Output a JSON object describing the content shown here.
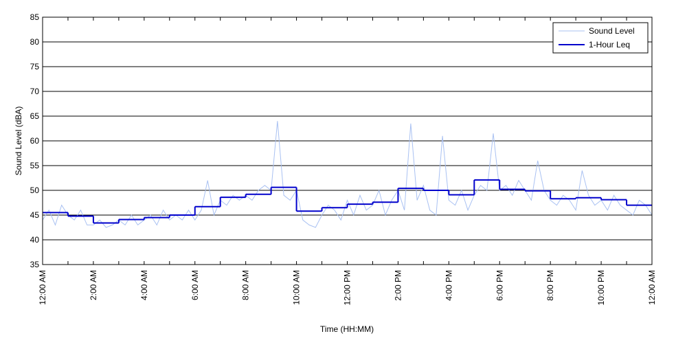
{
  "chart_data": {
    "type": "line",
    "ylabel": "Sound Level (dBA)",
    "xlabel": "Time (HH:MM)",
    "ylim": [
      35,
      85
    ],
    "yticks": [
      35,
      40,
      45,
      50,
      55,
      60,
      65,
      70,
      75,
      80,
      85
    ],
    "xlim": [
      0,
      24
    ],
    "xticks": [
      {
        "value": 0,
        "label": "12:00 AM"
      },
      {
        "value": 2,
        "label": "2:00 AM"
      },
      {
        "value": 4,
        "label": "4:00 AM"
      },
      {
        "value": 6,
        "label": "6:00 AM"
      },
      {
        "value": 8,
        "label": "8:00 AM"
      },
      {
        "value": 10,
        "label": "10:00 AM"
      },
      {
        "value": 12,
        "label": "12:00 PM"
      },
      {
        "value": 14,
        "label": "2:00 PM"
      },
      {
        "value": 16,
        "label": "4:00 PM"
      },
      {
        "value": 18,
        "label": "6:00 PM"
      },
      {
        "value": 20,
        "label": "8:00 PM"
      },
      {
        "value": 22,
        "label": "10:00 PM"
      },
      {
        "value": 24,
        "label": "12:00 AM"
      }
    ],
    "xminorticks": [
      1,
      3,
      5,
      7,
      9,
      11,
      13,
      15,
      17,
      19,
      21,
      23
    ],
    "grid": true,
    "legend": "top-right",
    "series": [
      {
        "name": "Sound Level",
        "color": "#a9c1f2",
        "style": "line",
        "x": [
          0,
          0.25,
          0.5,
          0.75,
          1,
          1.25,
          1.5,
          1.75,
          2,
          2.25,
          2.5,
          2.75,
          3,
          3.25,
          3.5,
          3.75,
          4,
          4.25,
          4.5,
          4.75,
          5,
          5.25,
          5.5,
          5.75,
          6,
          6.25,
          6.5,
          6.75,
          7,
          7.25,
          7.5,
          7.75,
          8,
          8.25,
          8.5,
          8.75,
          9,
          9.25,
          9.5,
          9.75,
          10,
          10.25,
          10.5,
          10.75,
          11,
          11.25,
          11.5,
          11.75,
          12,
          12.25,
          12.5,
          12.75,
          13,
          13.25,
          13.5,
          13.75,
          14,
          14.25,
          14.5,
          14.75,
          15,
          15.25,
          15.5,
          15.75,
          16,
          16.25,
          16.5,
          16.75,
          17,
          17.25,
          17.5,
          17.75,
          18,
          18.25,
          18.5,
          18.75,
          19,
          19.25,
          19.5,
          19.75,
          20,
          20.25,
          20.5,
          20.75,
          21,
          21.25,
          21.5,
          21.75,
          22,
          22.25,
          22.5,
          22.75,
          23,
          23.25,
          23.5,
          23.75,
          24
        ],
        "values": [
          44,
          46,
          43,
          47,
          45,
          44,
          46,
          43,
          43,
          44,
          42.5,
          43,
          44,
          43,
          45,
          43,
          44,
          45,
          43,
          46,
          44,
          45,
          44,
          46,
          44,
          46,
          52,
          45,
          48,
          47,
          49,
          48,
          49,
          48,
          50,
          51,
          50,
          64,
          49,
          48,
          50,
          44,
          43,
          42.5,
          45,
          47,
          46,
          44,
          48,
          45,
          49,
          46,
          47,
          50,
          45,
          48,
          50,
          46,
          63.5,
          48,
          51,
          46,
          45,
          61,
          48,
          47,
          50,
          46,
          49,
          51,
          50,
          61.5,
          50,
          51,
          49,
          52,
          50,
          48,
          56,
          50,
          48,
          47,
          49,
          48,
          46,
          54,
          49,
          47,
          48,
          46,
          49,
          47,
          46,
          45,
          48,
          47,
          45
        ]
      },
      {
        "name": "1-Hour Leq",
        "color": "#0000cc",
        "style": "step",
        "x": [
          0,
          1,
          2,
          3,
          4,
          5,
          6,
          7,
          8,
          9,
          10,
          11,
          12,
          13,
          14,
          15,
          16,
          17,
          18,
          19,
          20,
          21,
          22,
          23
        ],
        "values": [
          45.5,
          44.8,
          43.4,
          44.1,
          44.5,
          45.0,
          46.7,
          48.6,
          49.2,
          50.6,
          45.8,
          46.5,
          47.2,
          47.6,
          50.4,
          50.0,
          49.1,
          52.1,
          50.2,
          49.9,
          48.3,
          48.5,
          48.1,
          47.0
        ]
      }
    ]
  }
}
